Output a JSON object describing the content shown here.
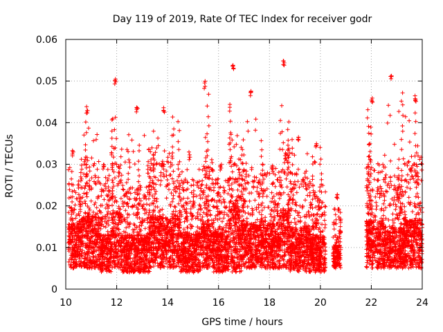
{
  "chart_data": {
    "type": "scatter",
    "title": "Day 119 of 2019, Rate Of TEC Index for receiver godr",
    "xlabel": "GPS time / hours",
    "ylabel": "ROTI / TECUs",
    "xlim": [
      10,
      24
    ],
    "ylim": [
      0,
      0.06
    ],
    "x_ticks": [
      "10",
      "12",
      "14",
      "16",
      "18",
      "20",
      "22",
      "24"
    ],
    "y_ticks": [
      "0",
      "0.01",
      "0.02",
      "0.03",
      "0.04",
      "0.05",
      "0.06"
    ],
    "grid": true,
    "marker": "+",
    "series": [
      {
        "name": "ROTI",
        "color": "#ff0000",
        "data_gaps_hours": [
          [
            20.8,
            21.8
          ]
        ],
        "segments": [
          {
            "x_start": 10.1,
            "x_end": 10.6,
            "base": 0.01,
            "spread": 0.012,
            "peak": 0.034
          },
          {
            "x_start": 10.6,
            "x_end": 11.3,
            "base": 0.01,
            "spread": 0.014,
            "peak": 0.044
          },
          {
            "x_start": 11.3,
            "x_end": 11.8,
            "base": 0.009,
            "spread": 0.01,
            "peak": 0.03
          },
          {
            "x_start": 11.8,
            "x_end": 12.2,
            "base": 0.01,
            "spread": 0.015,
            "peak": 0.051
          },
          {
            "x_start": 12.2,
            "x_end": 13.3,
            "base": 0.009,
            "spread": 0.01,
            "peak": 0.044
          },
          {
            "x_start": 13.3,
            "x_end": 14.5,
            "base": 0.01,
            "spread": 0.014,
            "peak": 0.044
          },
          {
            "x_start": 14.5,
            "x_end": 15.3,
            "base": 0.009,
            "spread": 0.011,
            "peak": 0.033
          },
          {
            "x_start": 15.3,
            "x_end": 15.8,
            "base": 0.01,
            "spread": 0.012,
            "peak": 0.05
          },
          {
            "x_start": 15.8,
            "x_end": 16.4,
            "base": 0.009,
            "spread": 0.011,
            "peak": 0.03
          },
          {
            "x_start": 16.4,
            "x_end": 16.9,
            "base": 0.009,
            "spread": 0.018,
            "peak": 0.054
          },
          {
            "x_start": 16.9,
            "x_end": 17.9,
            "base": 0.01,
            "spread": 0.012,
            "peak": 0.048
          },
          {
            "x_start": 17.9,
            "x_end": 18.4,
            "base": 0.01,
            "spread": 0.012,
            "peak": 0.03
          },
          {
            "x_start": 18.4,
            "x_end": 18.8,
            "base": 0.01,
            "spread": 0.016,
            "peak": 0.055
          },
          {
            "x_start": 18.8,
            "x_end": 19.6,
            "base": 0.009,
            "spread": 0.012,
            "peak": 0.037
          },
          {
            "x_start": 19.6,
            "x_end": 20.2,
            "base": 0.009,
            "spread": 0.01,
            "peak": 0.036
          },
          {
            "x_start": 20.5,
            "x_end": 20.8,
            "base": 0.01,
            "spread": 0.006,
            "peak": 0.023
          },
          {
            "x_start": 21.8,
            "x_end": 22.5,
            "base": 0.01,
            "spread": 0.013,
            "peak": 0.046
          },
          {
            "x_start": 22.5,
            "x_end": 23.3,
            "base": 0.01,
            "spread": 0.011,
            "peak": 0.052
          },
          {
            "x_start": 23.3,
            "x_end": 24.0,
            "base": 0.01,
            "spread": 0.013,
            "peak": 0.047
          }
        ]
      }
    ]
  }
}
